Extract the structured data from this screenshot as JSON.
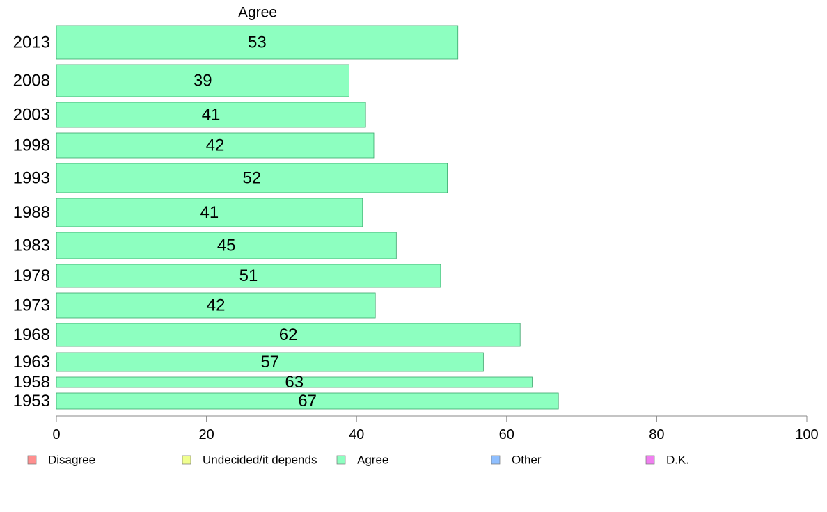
{
  "chart_data": {
    "type": "bar",
    "orientation": "horizontal",
    "title": "Agree",
    "categories": [
      "2013",
      "2008",
      "2003",
      "1998",
      "1993",
      "1988",
      "1983",
      "1978",
      "1973",
      "1968",
      "1963",
      "1958",
      "1953"
    ],
    "values": [
      53.5,
      39,
      41.2,
      42.3,
      52.1,
      40.8,
      45.3,
      51.2,
      42.5,
      61.8,
      56.9,
      63.4,
      66.9
    ],
    "value_labels": [
      "53",
      "39",
      "41",
      "42",
      "52",
      "41",
      "45",
      "51",
      "42",
      "62",
      "57",
      "63",
      "67"
    ],
    "xlim": [
      0,
      100
    ],
    "xticks": [
      0,
      20,
      40,
      60,
      80,
      100
    ],
    "xlabel": "",
    "ylabel": "",
    "grid": false,
    "legend_position": "bottom",
    "legend": [
      {
        "label": "Disagree",
        "color": "#ff8f8f"
      },
      {
        "label": "Undecided/it depends",
        "color": "#f0ff8f"
      },
      {
        "label": "Agree",
        "color": "#8dffc0"
      },
      {
        "label": "Other",
        "color": "#8fbfff"
      },
      {
        "label": "D.K.",
        "color": "#f07ff0"
      }
    ],
    "colors": {
      "bar": "#8dffc0",
      "bar_edge": "#3aa56a"
    }
  }
}
